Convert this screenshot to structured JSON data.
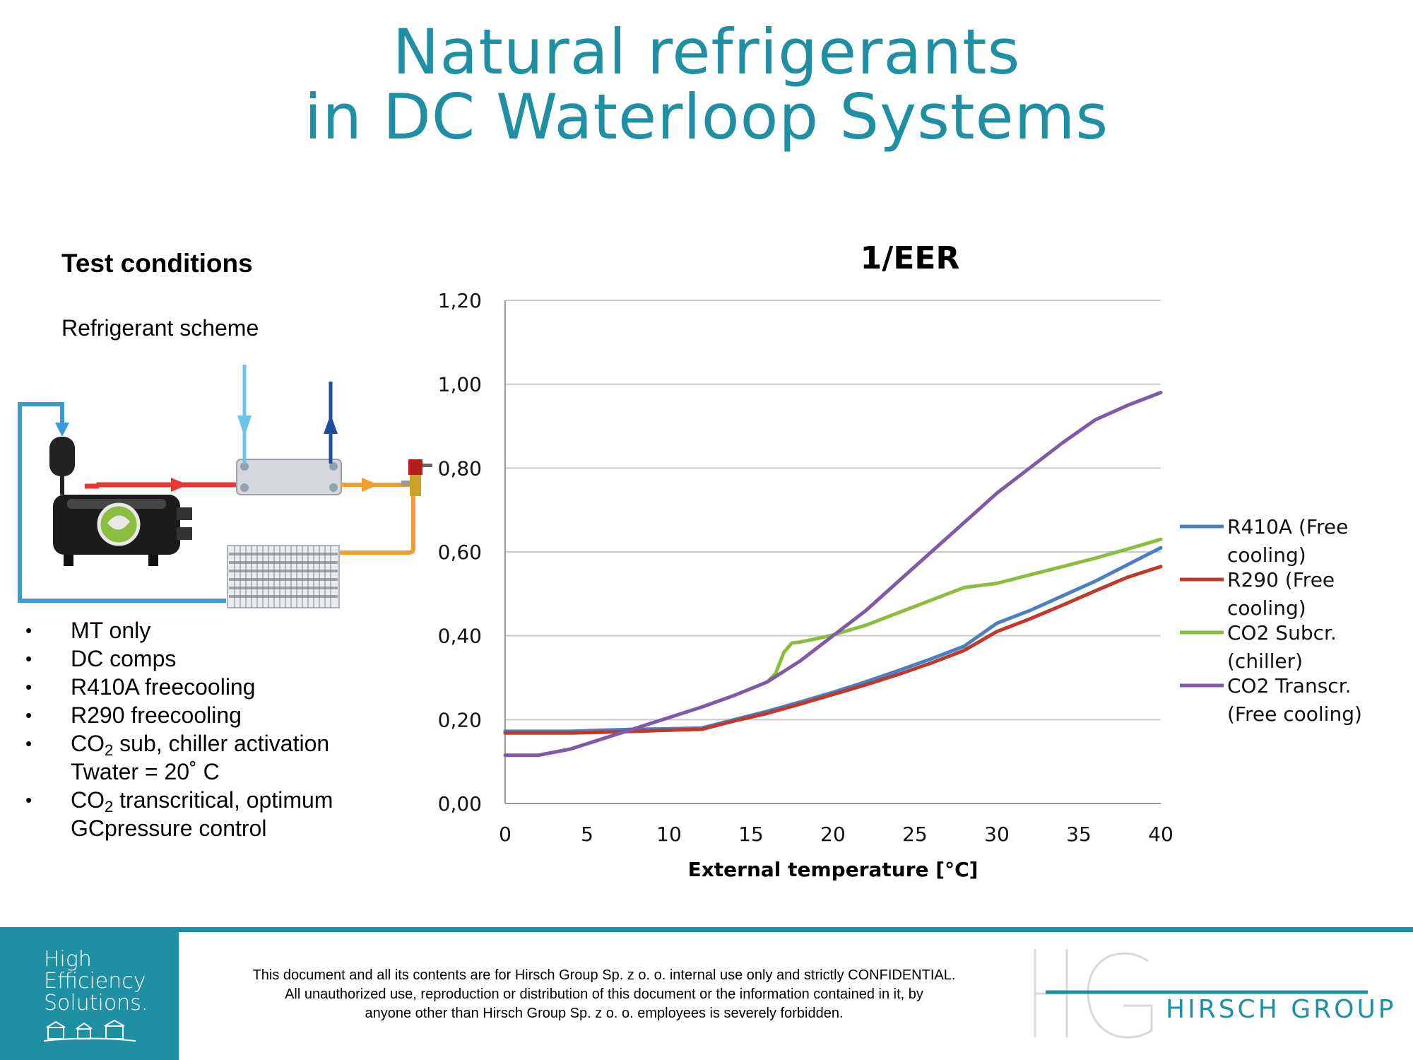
{
  "title": {
    "line1": "Natural refrigerants",
    "line2": "in DC Waterloop Systems"
  },
  "left_panel": {
    "heading": "Test conditions",
    "subheading": "Refrigerant scheme",
    "bullets": [
      {
        "text": "MT only"
      },
      {
        "text": "DC comps"
      },
      {
        "text": "R410A freecooling"
      },
      {
        "text": "R290 freecooling"
      },
      {
        "pre": "CO",
        "sub": "2",
        "post": " sub, chiller activation",
        "line2": "Twater = 20˚ C"
      },
      {
        "pre": "CO",
        "sub": "2",
        "post": " transcritical, optimum",
        "line2": "GCpressure control"
      }
    ]
  },
  "chart_data": {
    "type": "line",
    "title": "1/EER",
    "xlabel": "External temperature [°C]",
    "ylabel": "",
    "xlim": [
      0,
      40
    ],
    "ylim": [
      0,
      1.2
    ],
    "x_ticks": [
      "0",
      "5",
      "10",
      "15",
      "20",
      "25",
      "30",
      "35",
      "40"
    ],
    "y_ticks": [
      "0,00",
      "0,20",
      "0,40",
      "0,60",
      "0,80",
      "1,00",
      "1,20"
    ],
    "grid": "horizontal",
    "legend_position": "right",
    "series": [
      {
        "name": "R410A (Free cooling)",
        "color": "#4a7fc1",
        "x": [
          0,
          2,
          4,
          6,
          8,
          10,
          12,
          14,
          16,
          18,
          20,
          22,
          24,
          26,
          28,
          30,
          32,
          34,
          36,
          38,
          40
        ],
        "y": [
          0.172,
          0.172,
          0.172,
          0.175,
          0.177,
          0.178,
          0.18,
          0.2,
          0.22,
          0.242,
          0.265,
          0.29,
          0.317,
          0.345,
          0.375,
          0.43,
          0.46,
          0.495,
          0.53,
          0.57,
          0.61
        ]
      },
      {
        "name": "R290 (Free cooling)",
        "color": "#c0392b",
        "x": [
          0,
          2,
          4,
          6,
          8,
          10,
          12,
          14,
          16,
          18,
          20,
          22,
          24,
          26,
          28,
          30,
          32,
          34,
          36,
          38,
          40
        ],
        "y": [
          0.168,
          0.168,
          0.168,
          0.17,
          0.172,
          0.175,
          0.177,
          0.197,
          0.215,
          0.237,
          0.26,
          0.283,
          0.308,
          0.335,
          0.365,
          0.41,
          0.44,
          0.473,
          0.507,
          0.54,
          0.565
        ]
      },
      {
        "name": "CO2 Subcr. (chiller)",
        "color": "#8bbd3e",
        "x": [
          16,
          16.5,
          17,
          17.5,
          18,
          19,
          20,
          22,
          24,
          26,
          28,
          30,
          32,
          34,
          36,
          38,
          40
        ],
        "y": [
          0.29,
          0.31,
          0.36,
          0.383,
          0.385,
          0.393,
          0.402,
          0.425,
          0.455,
          0.485,
          0.515,
          0.525,
          0.545,
          0.565,
          0.585,
          0.607,
          0.63
        ]
      },
      {
        "name": "CO2 Transcr. (Free cooling)",
        "color": "#7e5ba6",
        "x": [
          0,
          1,
          2,
          4,
          6,
          8,
          10,
          12,
          14,
          16,
          18,
          20,
          22,
          24,
          26,
          28,
          30,
          32,
          34,
          36,
          38,
          40
        ],
        "y": [
          0.115,
          0.115,
          0.115,
          0.13,
          0.155,
          0.18,
          0.205,
          0.23,
          0.258,
          0.29,
          0.34,
          0.4,
          0.46,
          0.53,
          0.6,
          0.67,
          0.74,
          0.8,
          0.86,
          0.915,
          0.95,
          0.98
        ]
      }
    ]
  },
  "footer": {
    "hes_line1": "High",
    "hes_line2": "Efficiency",
    "hes_line3": "Solutions.",
    "disclaimer_line1": "This document and all its contents are for Hirsch Group Sp. z o. o. internal use only and strictly CONFIDENTIAL.",
    "disclaimer_line2": "All unauthorized use, reproduction or distribution of this document or the information contained in it, by",
    "disclaimer_line3": "anyone other than Hirsch Group Sp. z o. o. employees is severely forbidden.",
    "brand": "HIRSCH GROUP",
    "brand_color": "#1f8fa3"
  }
}
